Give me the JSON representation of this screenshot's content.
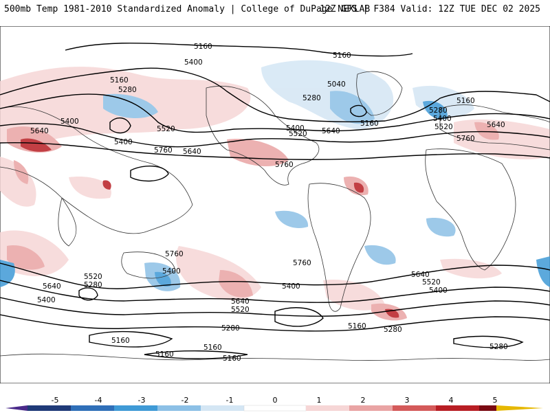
{
  "header": {
    "title": "500mb Temp 1981-2010 Standardized Anomaly | College of DuPage NEXLAB",
    "model_info": "12Z GFS | F384 Valid: 12Z TUE DEC 02 2025"
  },
  "map": {
    "variable": "500mb temperature standardized anomaly",
    "contour_field": "500mb geopotential height (dam)",
    "contour_labels": [
      "5160",
      "5400",
      "5160",
      "5280",
      "5400",
      "5640",
      "5400",
      "5520",
      "5640",
      "5760",
      "5160",
      "5040",
      "5280",
      "5400",
      "5520",
      "5640",
      "5160",
      "5160",
      "5280",
      "5400",
      "5520",
      "5640",
      "5760",
      "5760",
      "5520",
      "5280",
      "5640",
      "5400",
      "5400",
      "5640",
      "5520",
      "5760",
      "5400",
      "5280",
      "5160",
      "5160",
      "5160",
      "5160",
      "5760",
      "5640",
      "5520",
      "5400",
      "5160",
      "5280",
      "5280"
    ]
  },
  "legend": {
    "ticks": [
      "-5",
      "-4",
      "-3",
      "-2",
      "-1",
      "0",
      "1",
      "2",
      "3",
      "4",
      "5"
    ],
    "colors": [
      "#4a2a8a",
      "#1f3a78",
      "#2f6fb8",
      "#3f9ad6",
      "#8cc0e6",
      "#d4e6f4",
      "#ffffff",
      "#f6d6d6",
      "#e9a4a4",
      "#d45a5a",
      "#b81e24",
      "#7a0a12",
      "#e6b800"
    ]
  }
}
